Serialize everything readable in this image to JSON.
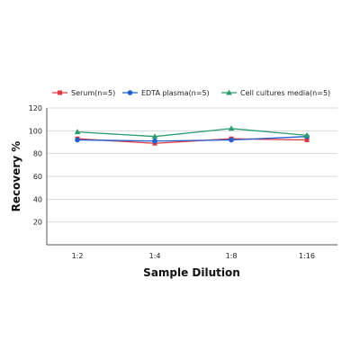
{
  "chart_data": {
    "type": "line",
    "categories": [
      "1:2",
      "1:4",
      "1:8",
      "1:16"
    ],
    "series": [
      {
        "name": "Serum(n=5)",
        "values": [
          93,
          89,
          93,
          92
        ],
        "color": "#e0393e",
        "marker": "square"
      },
      {
        "name": "EDTA plasma(n=5)",
        "values": [
          92,
          91,
          92,
          95
        ],
        "color": "#1f5fd6",
        "marker": "circle"
      },
      {
        "name": "Cell cultures media(n=5)",
        "values": [
          99,
          95,
          102,
          96
        ],
        "color": "#2a9d6e",
        "marker": "triangle"
      }
    ],
    "title": "",
    "xlabel": "Sample Dilution",
    "ylabel": "Recovery %",
    "ylim": [
      0,
      120
    ],
    "yticks": [
      20,
      40,
      60,
      80,
      100,
      120
    ],
    "grid": "horizontal",
    "legend_position": "top"
  }
}
